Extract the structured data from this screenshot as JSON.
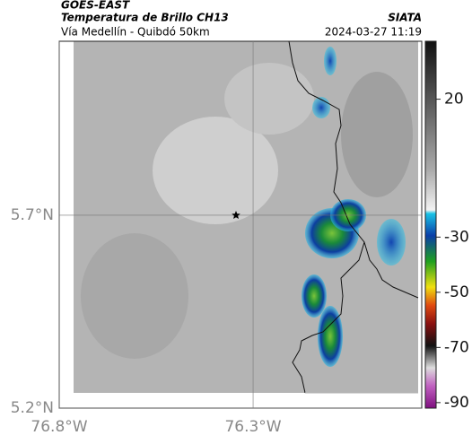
{
  "header": {
    "title": "GOES-EAST",
    "subtitle": "Temperatura de Brillo CH13",
    "route": "Vía Medellín - Quibdó 50km",
    "source": "SIATA",
    "datetime": "2024-03-27 11:19"
  },
  "map": {
    "xlim": [
      -76.8,
      -75.865
    ],
    "ylim": [
      5.2,
      6.151
    ],
    "xticks": [
      {
        "value": -76.8,
        "label": "76.8°W"
      },
      {
        "value": -76.3,
        "label": "76.3°W"
      }
    ],
    "yticks": [
      {
        "value": 5.7,
        "label": "5.7°N"
      },
      {
        "value": 5.2,
        "label": "5.2°N"
      }
    ],
    "marker": {
      "lon": -76.344,
      "lat": 5.7
    }
  },
  "colorbar": {
    "lim": [
      -92,
      41
    ],
    "ticks": [
      20,
      -30,
      -50,
      -70,
      -90
    ]
  }
}
